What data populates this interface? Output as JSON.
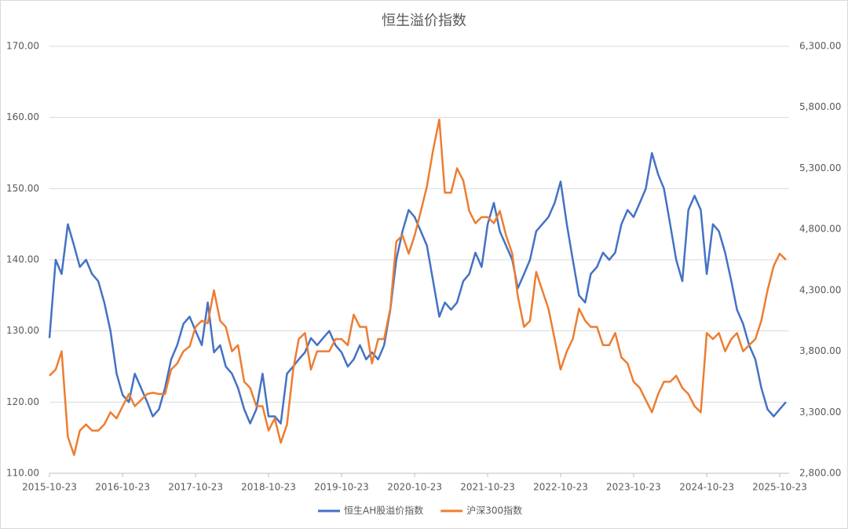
{
  "chart_data": {
    "type": "line",
    "title": "恒生溢价指数",
    "x": [
      "2015-10-23",
      "2015-11-23",
      "2015-12-23",
      "2016-01-23",
      "2016-02-23",
      "2016-03-23",
      "2016-04-23",
      "2016-05-23",
      "2016-06-23",
      "2016-07-23",
      "2016-08-23",
      "2016-09-23",
      "2016-10-23",
      "2016-11-23",
      "2016-12-23",
      "2017-01-23",
      "2017-02-23",
      "2017-03-23",
      "2017-04-23",
      "2017-05-23",
      "2017-06-23",
      "2017-07-23",
      "2017-08-23",
      "2017-09-23",
      "2017-10-23",
      "2017-11-23",
      "2017-12-23",
      "2018-01-23",
      "2018-02-23",
      "2018-03-23",
      "2018-04-23",
      "2018-05-23",
      "2018-06-23",
      "2018-07-23",
      "2018-08-23",
      "2018-09-23",
      "2018-10-23",
      "2018-11-23",
      "2018-12-23",
      "2019-01-23",
      "2019-02-23",
      "2019-03-23",
      "2019-04-23",
      "2019-05-23",
      "2019-06-23",
      "2019-07-23",
      "2019-08-23",
      "2019-09-23",
      "2019-10-23",
      "2019-11-23",
      "2019-12-23",
      "2020-01-23",
      "2020-02-23",
      "2020-03-23",
      "2020-04-23",
      "2020-05-23",
      "2020-06-23",
      "2020-07-23",
      "2020-08-23",
      "2020-09-23",
      "2020-10-23",
      "2020-11-23",
      "2020-12-23",
      "2021-01-23",
      "2021-02-23",
      "2021-03-23",
      "2021-04-23",
      "2021-05-23",
      "2021-06-23",
      "2021-07-23",
      "2021-08-23",
      "2021-09-23",
      "2021-10-23",
      "2021-11-23",
      "2021-12-23",
      "2022-01-23",
      "2022-02-23",
      "2022-03-23",
      "2022-04-23",
      "2022-05-23",
      "2022-06-23",
      "2022-07-23",
      "2022-08-23",
      "2022-09-23",
      "2022-10-23",
      "2022-11-23",
      "2022-12-23",
      "2023-01-23",
      "2023-02-23",
      "2023-03-23",
      "2023-04-23",
      "2023-05-23",
      "2023-06-23",
      "2023-07-23",
      "2023-08-23",
      "2023-09-23",
      "2023-10-23",
      "2023-11-23",
      "2023-12-23",
      "2024-01-23",
      "2024-02-23",
      "2024-03-23",
      "2024-04-23",
      "2024-05-23",
      "2024-06-23",
      "2024-07-23",
      "2024-08-23",
      "2024-09-23",
      "2024-10-23",
      "2024-11-23",
      "2024-12-23",
      "2025-01-23",
      "2025-02-23",
      "2025-03-23",
      "2025-04-23",
      "2025-05-23",
      "2025-06-23",
      "2025-07-23",
      "2025-08-23",
      "2025-09-23",
      "2025-10-23",
      "2025-11-23"
    ],
    "series": [
      {
        "name": "恒生AH股溢价指数",
        "color": "#4472c4",
        "values": [
          129,
          140,
          138,
          145,
          142,
          139,
          140,
          138,
          137,
          134,
          130,
          124,
          121,
          120,
          124,
          122,
          120,
          118,
          119,
          122,
          126,
          128,
          131,
          132,
          130,
          128,
          134,
          127,
          128,
          125,
          124,
          122,
          119,
          117,
          119,
          124,
          118,
          118,
          117,
          124,
          125,
          126,
          127,
          129,
          128,
          129,
          130,
          128,
          127,
          125,
          126,
          128,
          126,
          127,
          126,
          128,
          133,
          140,
          144,
          147,
          146,
          144,
          142,
          137,
          132,
          134,
          133,
          134,
          137,
          138,
          141,
          139,
          145,
          148,
          144,
          142,
          140,
          136,
          138,
          140,
          144,
          145,
          146,
          148,
          151,
          145,
          140,
          135,
          134,
          138,
          139,
          141,
          140,
          141,
          145,
          147,
          146,
          148,
          150,
          155,
          152,
          150,
          145,
          140,
          137,
          147,
          149,
          147,
          138,
          145,
          144,
          141,
          137,
          133,
          131,
          128,
          126,
          122,
          119,
          118,
          119,
          120
        ]
      },
      {
        "name": "沪深300指数",
        "color": "#ed7d31",
        "axis": "y2",
        "values": [
          3600,
          3650,
          3800,
          3100,
          2950,
          3150,
          3200,
          3150,
          3150,
          3200,
          3300,
          3250,
          3350,
          3450,
          3350,
          3400,
          3450,
          3460,
          3450,
          3450,
          3650,
          3700,
          3800,
          3840,
          4000,
          4050,
          4030,
          4300,
          4050,
          4000,
          3800,
          3850,
          3550,
          3500,
          3350,
          3350,
          3150,
          3250,
          3050,
          3200,
          3650,
          3900,
          3950,
          3650,
          3800,
          3800,
          3800,
          3900,
          3900,
          3850,
          4100,
          4000,
          4000,
          3700,
          3900,
          3900,
          4150,
          4700,
          4750,
          4600,
          4750,
          4950,
          5150,
          5450,
          5700,
          5100,
          5100,
          5300,
          5200,
          4950,
          4850,
          4900,
          4900,
          4850,
          4950,
          4750,
          4600,
          4250,
          4000,
          4050,
          4450,
          4300,
          4150,
          3900,
          3650,
          3800,
          3900,
          4150,
          4050,
          4000,
          4000,
          3850,
          3850,
          3950,
          3750,
          3700,
          3550,
          3500,
          3400,
          3300,
          3450,
          3550,
          3550,
          3600,
          3500,
          3450,
          3350,
          3300,
          3950,
          3900,
          3950,
          3800,
          3900,
          3950,
          3800,
          3850,
          3900,
          4050,
          4300,
          4500,
          4600,
          4550
        ]
      }
    ],
    "xlim": [
      "2015-10-23",
      "2025-12-09"
    ],
    "xticks": [
      "2015-10-23",
      "2016-10-23",
      "2017-10-23",
      "2018-10-23",
      "2019-10-23",
      "2020-10-23",
      "2021-10-23",
      "2022-10-23",
      "2023-10-23",
      "2024-10-23",
      "2025-10-23"
    ],
    "ylim": [
      110,
      170
    ],
    "yticks": [
      {
        "value": 110,
        "label": "110.00"
      },
      {
        "value": 120,
        "label": "120.00"
      },
      {
        "value": 130,
        "label": "130.00"
      },
      {
        "value": 140,
        "label": "140.00"
      },
      {
        "value": 150,
        "label": "150.00"
      },
      {
        "value": 160,
        "label": "160.00"
      },
      {
        "value": 170,
        "label": "170.00"
      }
    ],
    "y2lim": [
      2800,
      6300
    ],
    "y2ticks": [
      {
        "value": 2800,
        "label": "2,800.00"
      },
      {
        "value": 3300,
        "label": "3,300.00"
      },
      {
        "value": 3800,
        "label": "3,800.00"
      },
      {
        "value": 4300,
        "label": "4,300.00"
      },
      {
        "value": 4800,
        "label": "4,800.00"
      },
      {
        "value": 5300,
        "label": "5,300.00"
      },
      {
        "value": 5800,
        "label": "5,800.00"
      },
      {
        "value": 6300,
        "label": "6,300.00"
      }
    ],
    "grid": true,
    "legend": "bottom"
  }
}
